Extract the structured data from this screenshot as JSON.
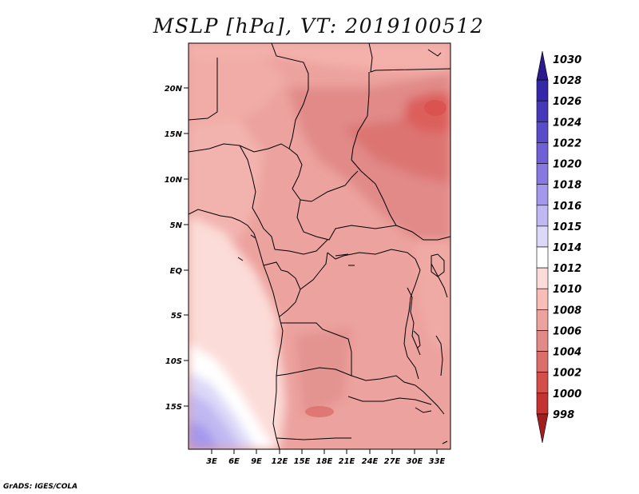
{
  "title": "MSLP [hPa], VT: 2019100512",
  "lat_labels": [
    "20N",
    "15N",
    "10N",
    "5N",
    "EQ",
    "5S",
    "10S",
    "15S"
  ],
  "lon_labels": [
    "3E",
    "6E",
    "9E",
    "12E",
    "15E",
    "18E",
    "21E",
    "24E",
    "27E",
    "30E",
    "33E"
  ],
  "colorbar": {
    "levels": [
      "1030",
      "1028",
      "1026",
      "1024",
      "1022",
      "1020",
      "1018",
      "1016",
      "1015",
      "1014",
      "1012",
      "1010",
      "1008",
      "1006",
      "1004",
      "1002",
      "1000",
      "998"
    ],
    "colors": [
      "#2a1a8c",
      "#3428a8",
      "#4638b8",
      "#5a4cc8",
      "#7060d6",
      "#8878e2",
      "#a498ec",
      "#c0b8f2",
      "#dcd8f8",
      "#ffffff",
      "#fcdcd8",
      "#f8bdb7",
      "#eca29e",
      "#e18a88",
      "#dc6e6a",
      "#d44e4a",
      "#c43232",
      "#a01e1e"
    ]
  },
  "footer": "GrADS: IGES/COLA"
}
